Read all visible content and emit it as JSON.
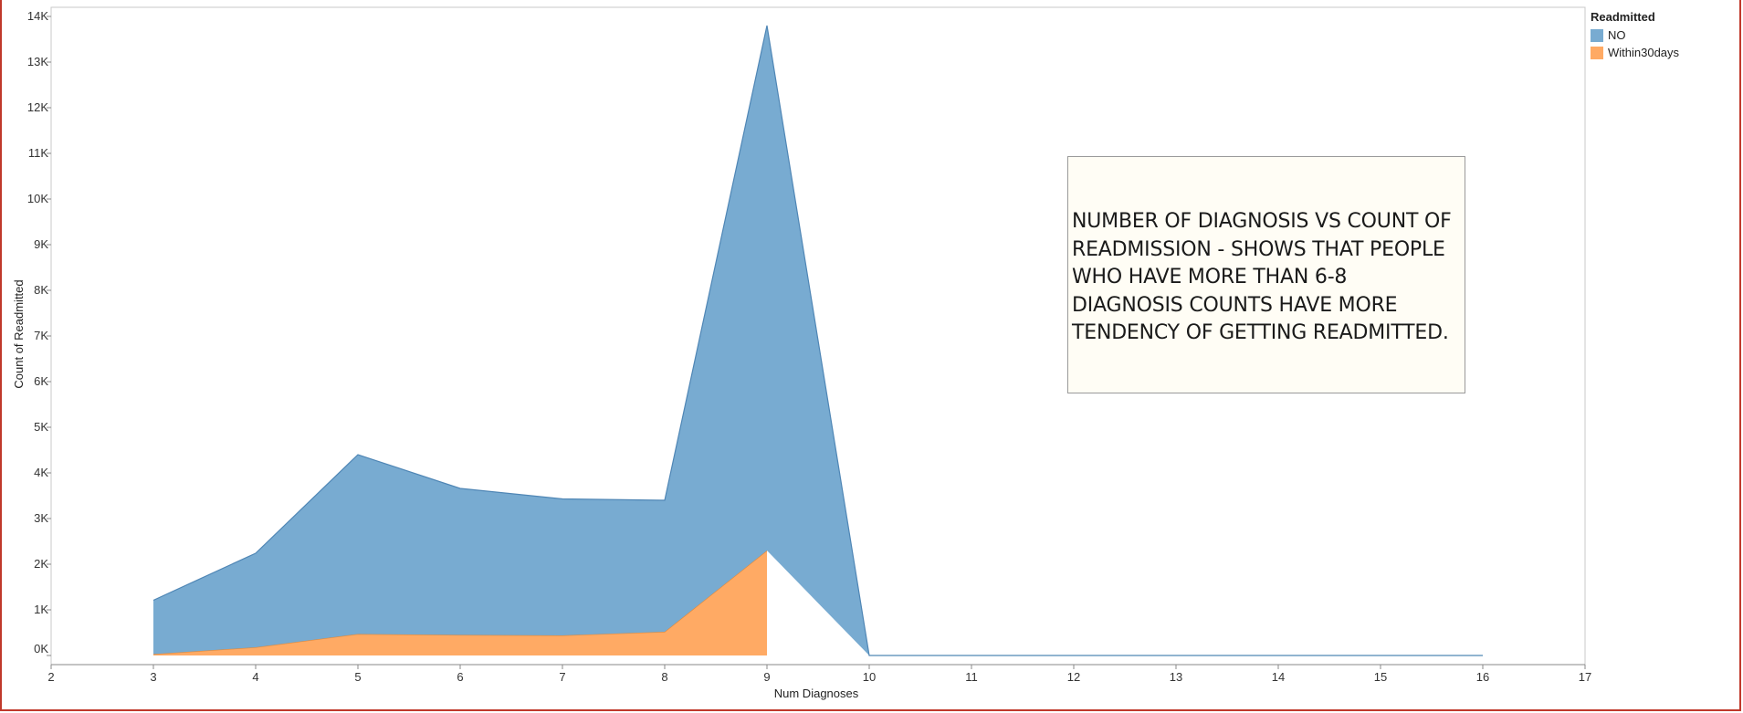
{
  "chart_data": {
    "type": "area",
    "xlabel": "Num Diagnoses",
    "ylabel": "Count of Readmitted",
    "xlim": [
      2,
      17
    ],
    "ylim": [
      -200,
      14200
    ],
    "x_ticks": [
      "2",
      "3",
      "4",
      "5",
      "6",
      "7",
      "8",
      "9",
      "10",
      "11",
      "12",
      "13",
      "14",
      "15",
      "16",
      "17"
    ],
    "y_ticks": [
      {
        "v": 0,
        "label": "0K"
      },
      {
        "v": 1000,
        "label": "1K"
      },
      {
        "v": 2000,
        "label": "2K"
      },
      {
        "v": 3000,
        "label": "3K"
      },
      {
        "v": 4000,
        "label": "4K"
      },
      {
        "v": 5000,
        "label": "5K"
      },
      {
        "v": 6000,
        "label": "6K"
      },
      {
        "v": 7000,
        "label": "7K"
      },
      {
        "v": 8000,
        "label": "8K"
      },
      {
        "v": 9000,
        "label": "9K"
      },
      {
        "v": 10000,
        "label": "10K"
      },
      {
        "v": 11000,
        "label": "11K"
      },
      {
        "v": 12000,
        "label": "12K"
      },
      {
        "v": 13000,
        "label": "13K"
      },
      {
        "v": 14000,
        "label": "14K"
      }
    ],
    "stacked": true,
    "series": [
      {
        "name": "Within30days",
        "color": "#ffaa64",
        "x": [
          3,
          4,
          5,
          6,
          7,
          8,
          9
        ],
        "values": [
          30,
          180,
          470,
          450,
          440,
          520,
          2300
        ]
      },
      {
        "name": "NO",
        "color": "#78abd1",
        "x": [
          3,
          4,
          5,
          6,
          7,
          8,
          9,
          10,
          11,
          12,
          13,
          14,
          15,
          16
        ],
        "values": [
          1180,
          2060,
          3930,
          3210,
          2990,
          2880,
          11500,
          0,
          0,
          0,
          0,
          0,
          0,
          0
        ]
      }
    ],
    "legend": {
      "title": "Readmitted",
      "position": "top-right",
      "items": [
        {
          "label": "NO",
          "color": "#78abd1"
        },
        {
          "label": "Within30days",
          "color": "#ffaa64"
        }
      ]
    },
    "annotation": "NUMBER OF DIAGNOSIS VS COUNT OF READMISSION - SHOWS THAT PEOPLE WHO HAVE MORE THAN 6-8 DIAGNOSIS COUNTS HAVE MORE TENDENCY OF GETTING READMITTED."
  }
}
